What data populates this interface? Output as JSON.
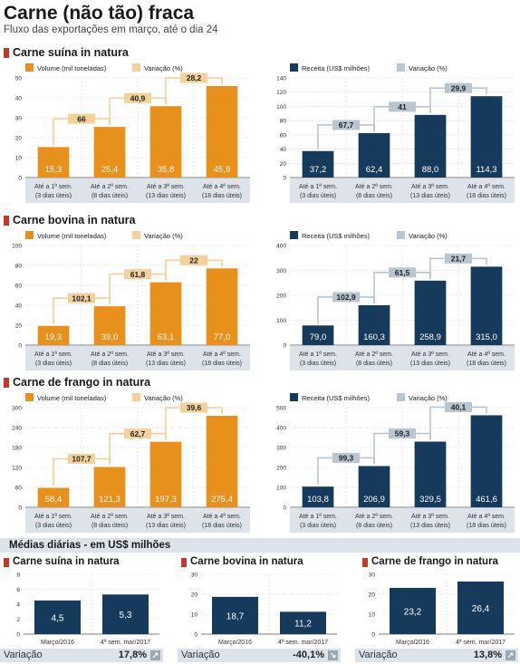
{
  "header": {
    "title": "Carne (não tão) fraca",
    "subtitle": "Fluxo das exportações em março, até o dia 24"
  },
  "categories": [
    [
      "Até a 1ª sem.",
      "(3 dias úteis)"
    ],
    [
      "Até a 2ª sem.",
      "(8 dias úteis)"
    ],
    [
      "Até a 3ª sem.",
      "(13 dias úteis)"
    ],
    [
      "Até a 4ª sem.",
      "(18 dias úteis)"
    ]
  ],
  "sections": [
    {
      "title": "Carne suína in natura"
    },
    {
      "title": "Carne bovina in natura"
    },
    {
      "title": "Carne de frango in natura"
    }
  ],
  "medias": {
    "title": "Médias diárias - em US$ milhões",
    "variation_label": "Variação",
    "categories": [
      "Março/2016",
      "4ª sem. mar/2017"
    ]
  },
  "colors": {
    "orange": "#e8901c",
    "orange_light": "#f3d19a",
    "navy": "#163a5c",
    "gray_light": "#b9c6d2",
    "cat_bg": "#dce3ea"
  },
  "chart_data": [
    {
      "type": "bar",
      "group": "Carne suína in natura",
      "color": "orange",
      "var_color": "orange_light",
      "series_label": "Volume (mil toneladas)",
      "variation_label": "Variação (%)",
      "values": [
        15.3,
        25.4,
        35.8,
        45.9
      ],
      "value_labels": [
        "15,3",
        "25,4",
        "35,8",
        "45,9"
      ],
      "variations": [
        "66",
        "40,9",
        "28,2"
      ],
      "yticks": [
        0,
        10,
        20,
        30,
        40,
        50
      ],
      "ylim": [
        0,
        50
      ]
    },
    {
      "type": "bar",
      "group": "Carne suína in natura",
      "color": "navy",
      "var_color": "gray_light",
      "series_label": "Receita (US$ milhões)",
      "variation_label": "Variação (%)",
      "values": [
        37.2,
        62.4,
        88.0,
        114.3
      ],
      "value_labels": [
        "37,2",
        "62,4",
        "88,0",
        "114,3"
      ],
      "variations": [
        "67,7",
        "41",
        "29,9"
      ],
      "yticks": [
        0,
        20,
        40,
        60,
        80,
        100,
        120,
        140
      ],
      "ylim": [
        0,
        140
      ]
    },
    {
      "type": "bar",
      "group": "Carne bovina in natura",
      "color": "orange",
      "var_color": "orange_light",
      "series_label": "Volume (mil toneladas)",
      "variation_label": "Variação (%)",
      "values": [
        19.3,
        39.0,
        63.1,
        77.0
      ],
      "value_labels": [
        "19,3",
        "39,0",
        "63,1",
        "77,0"
      ],
      "variations": [
        "102,1",
        "61,8",
        "22"
      ],
      "yticks": [
        0,
        20,
        40,
        60,
        80,
        100
      ],
      "ylim": [
        0,
        100
      ]
    },
    {
      "type": "bar",
      "group": "Carne bovina in natura",
      "color": "navy",
      "var_color": "gray_light",
      "series_label": "Receita (US$ milhões)",
      "variation_label": "Variação (%)",
      "values": [
        79.0,
        160.3,
        258.9,
        315.0
      ],
      "value_labels": [
        "79,0",
        "160,3",
        "258,9",
        "315,0"
      ],
      "variations": [
        "102,9",
        "61,5",
        "21,7"
      ],
      "yticks": [
        0,
        100,
        200,
        300,
        400
      ],
      "ylim": [
        0,
        400
      ]
    },
    {
      "type": "bar",
      "group": "Carne de frango in natura",
      "color": "orange",
      "var_color": "orange_light",
      "series_label": "Volume (mil toneladas)",
      "variation_label": "Variação (%)",
      "values": [
        58.4,
        121.3,
        197.3,
        275.4
      ],
      "value_labels": [
        "58,4",
        "121,3",
        "197,3",
        "275,4"
      ],
      "variations": [
        "107,7",
        "62,7",
        "39,6"
      ],
      "yticks": [
        0,
        60,
        120,
        180,
        240,
        300
      ],
      "ylim": [
        0,
        300
      ]
    },
    {
      "type": "bar",
      "group": "Carne de frango in natura",
      "color": "navy",
      "var_color": "gray_light",
      "series_label": "Receita (US$ milhões)",
      "variation_label": "Variação (%)",
      "values": [
        103.8,
        206.9,
        329.5,
        461.6
      ],
      "value_labels": [
        "103,8",
        "206,9",
        "329,5",
        "461,6"
      ],
      "variations": [
        "99,3",
        "59,3",
        "40,1"
      ],
      "yticks": [
        0,
        100,
        200,
        300,
        400,
        500
      ],
      "ylim": [
        0,
        500
      ]
    },
    {
      "type": "bar",
      "group": "Carne suína in natura",
      "color": "navy",
      "small": true,
      "values": [
        4.5,
        5.3
      ],
      "value_labels": [
        "4,5",
        "5,3"
      ],
      "yticks": [
        0,
        2,
        4,
        6,
        8
      ],
      "ylim": [
        0,
        8
      ],
      "variation": "17,8%",
      "direction": "up"
    },
    {
      "type": "bar",
      "group": "Carne bovina in natura",
      "color": "navy",
      "small": true,
      "values": [
        18.7,
        11.2
      ],
      "value_labels": [
        "18,7",
        "11,2"
      ],
      "yticks": [
        0,
        10,
        20,
        30
      ],
      "ylim": [
        0,
        30
      ],
      "variation": "-40,1%",
      "direction": "down"
    },
    {
      "type": "bar",
      "group": "Carne de frango in natura",
      "color": "navy",
      "small": true,
      "values": [
        23.2,
        26.4
      ],
      "value_labels": [
        "23,2",
        "26,4"
      ],
      "yticks": [
        0,
        10,
        20,
        30
      ],
      "ylim": [
        0,
        30
      ],
      "variation": "13,8%",
      "direction": "up"
    }
  ]
}
